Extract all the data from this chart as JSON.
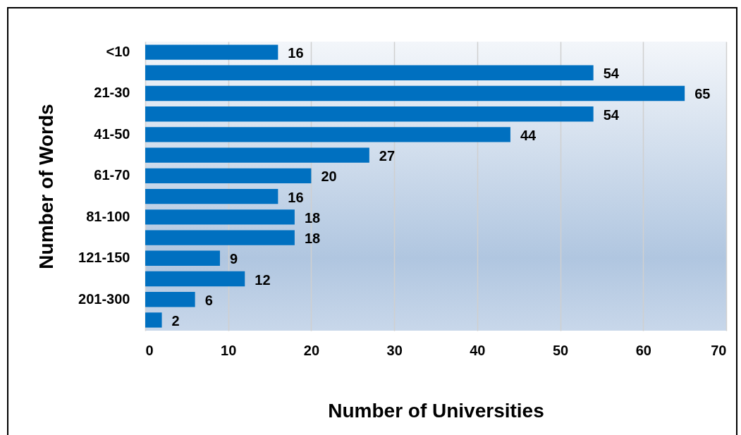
{
  "chart_data": {
    "type": "bar",
    "orientation": "horizontal",
    "xlabel": "Number of Universities",
    "ylabel": "Number of Words",
    "categories": [
      "<10",
      null,
      "21-30",
      null,
      "41-50",
      null,
      "61-70",
      null,
      "81-100",
      null,
      "121-150",
      null,
      "201-300",
      null
    ],
    "values": [
      16,
      54,
      65,
      54,
      44,
      27,
      20,
      16,
      18,
      18,
      9,
      12,
      6,
      2
    ],
    "color": "#0070c0",
    "xlim": [
      0,
      70
    ],
    "xticks": [
      0,
      10,
      20,
      30,
      40,
      50,
      60,
      70
    ],
    "grid": "x",
    "data_labels": true
  }
}
